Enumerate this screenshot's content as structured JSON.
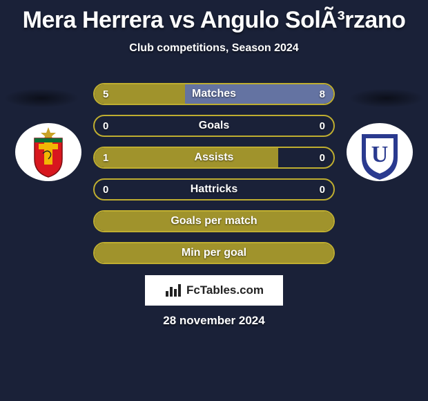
{
  "title": "Mera Herrera vs Angulo SolÃ³rzano",
  "subtitle": "Club competitions, Season 2024",
  "date": "28 november 2024",
  "watermark": "FcTables.com",
  "colors": {
    "background": "#1a2138",
    "bar_left_fill": "#a89a2b",
    "bar_right_fill": "#6878a8",
    "bar_border": "#bfae30",
    "bar_right_border": "#6878a8",
    "text": "#ffffff"
  },
  "left_club": {
    "name": "deportivo-cuenca",
    "badge_bg": "#ffffff",
    "badge_primary": "#d8171e",
    "badge_secondary": "#f2b705",
    "badge_accent": "#0b6e35"
  },
  "right_club": {
    "name": "ldu-quito",
    "badge_bg": "#ffffff",
    "badge_primary": "#2a3a8f",
    "badge_letter": "U"
  },
  "bars": [
    {
      "label": "Matches",
      "left": "5",
      "right": "8",
      "left_pct": 38,
      "right_pct": 62,
      "border": "#bfae30"
    },
    {
      "label": "Goals",
      "left": "0",
      "right": "0",
      "left_pct": 0,
      "right_pct": 0,
      "border": "#bfae30"
    },
    {
      "label": "Assists",
      "left": "1",
      "right": "0",
      "left_pct": 77,
      "right_pct": 0,
      "border": "#bfae30"
    },
    {
      "label": "Hattricks",
      "left": "0",
      "right": "0",
      "left_pct": 0,
      "right_pct": 0,
      "border": "#bfae30"
    },
    {
      "label": "Goals per match",
      "left": "",
      "right": "",
      "left_pct": 100,
      "right_pct": 0,
      "border": "#bfae30"
    },
    {
      "label": "Min per goal",
      "left": "",
      "right": "",
      "left_pct": 100,
      "right_pct": 0,
      "border": "#bfae30"
    }
  ]
}
